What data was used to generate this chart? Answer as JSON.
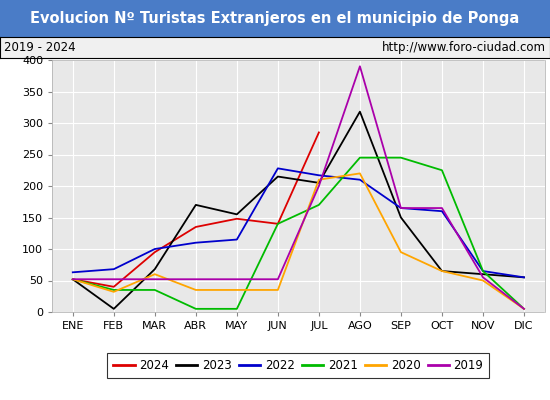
{
  "title": "Evolucion Nº Turistas Extranjeros en el municipio de Ponga",
  "subtitle_left": "2019 - 2024",
  "subtitle_right": "http://www.foro-ciudad.com",
  "title_bg_color": "#4a7cc7",
  "title_text_color": "#ffffff",
  "subtitle_bg_color": "#f0f0f0",
  "subtitle_text_color": "#000000",
  "plot_bg_color": "#e8e8e8",
  "months": [
    "ENE",
    "FEB",
    "MAR",
    "ABR",
    "MAY",
    "JUN",
    "JUL",
    "AGO",
    "SEP",
    "OCT",
    "NOV",
    "DIC"
  ],
  "ylim": [
    0,
    400
  ],
  "yticks": [
    0,
    50,
    100,
    150,
    200,
    250,
    300,
    350,
    400
  ],
  "series": {
    "2024": {
      "color": "#dd0000",
      "data": [
        52,
        40,
        95,
        135,
        148,
        140,
        285,
        null,
        null,
        null,
        null,
        null
      ]
    },
    "2023": {
      "color": "#000000",
      "data": [
        52,
        5,
        68,
        170,
        155,
        215,
        205,
        318,
        150,
        65,
        60,
        55
      ]
    },
    "2022": {
      "color": "#0000cc",
      "data": [
        63,
        68,
        100,
        110,
        115,
        228,
        217,
        210,
        165,
        160,
        65,
        55
      ]
    },
    "2021": {
      "color": "#00bb00",
      "data": [
        52,
        35,
        35,
        5,
        5,
        140,
        170,
        245,
        245,
        225,
        65,
        5
      ]
    },
    "2020": {
      "color": "#ffa500",
      "data": [
        52,
        32,
        60,
        35,
        35,
        35,
        210,
        220,
        95,
        65,
        50,
        5
      ]
    },
    "2019": {
      "color": "#aa00aa",
      "data": [
        52,
        52,
        52,
        52,
        52,
        52,
        200,
        390,
        165,
        165,
        55,
        5
      ]
    }
  },
  "legend_order": [
    "2024",
    "2023",
    "2022",
    "2021",
    "2020",
    "2019"
  ]
}
